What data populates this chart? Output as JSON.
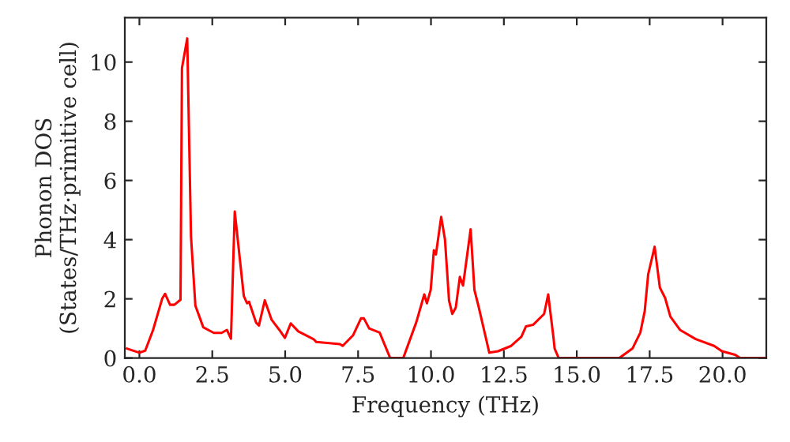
{
  "chart_data": {
    "type": "line",
    "xlabel": "Frequency (THz)",
    "ylabel": "Phonon DOS\n(States/THz·primitive cell)",
    "xlim": [
      -0.5,
      21.5
    ],
    "ylim": [
      0,
      11.5
    ],
    "xticks": [
      {
        "value": 0,
        "label": "0.0"
      },
      {
        "value": 2.5,
        "label": "2.5"
      },
      {
        "value": 5,
        "label": "5.0"
      },
      {
        "value": 7.5,
        "label": "7.5"
      },
      {
        "value": 10,
        "label": "10.0"
      },
      {
        "value": 12.5,
        "label": "12.5"
      },
      {
        "value": 15,
        "label": "15.0"
      },
      {
        "value": 17.5,
        "label": "17.5"
      },
      {
        "value": 20,
        "label": "20.0"
      }
    ],
    "yticks": [
      0,
      2,
      4,
      6,
      8,
      10
    ],
    "grid": false,
    "legend": false,
    "marker": "none",
    "line_style": "solid",
    "series": [
      {
        "color": "#ff0000",
        "x": [
          -0.43,
          0.0,
          0.2,
          0.47,
          0.78,
          0.88,
          1.05,
          1.2,
          1.41,
          1.46,
          1.64,
          1.77,
          1.92,
          2.19,
          2.55,
          2.82,
          3.0,
          3.14,
          3.27,
          3.58,
          3.69,
          3.76,
          4.0,
          4.1,
          4.3,
          4.53,
          4.8,
          4.99,
          5.19,
          5.45,
          5.98,
          6.07,
          6.88,
          6.97,
          7.33,
          7.6,
          7.7,
          7.88,
          8.24,
          8.6,
          9.05,
          9.5,
          9.77,
          9.86,
          9.99,
          10.1,
          10.17,
          10.35,
          10.48,
          10.62,
          10.73,
          10.85,
          10.99,
          11.1,
          11.36,
          11.49,
          11.63,
          12.0,
          12.3,
          12.75,
          13.1,
          13.26,
          13.5,
          13.88,
          14.02,
          14.2,
          14.24,
          14.38,
          16.46,
          16.91,
          17.18,
          17.33,
          17.45,
          17.67,
          17.85,
          18.03,
          18.21,
          18.54,
          19.08,
          19.71,
          19.98,
          20.43,
          20.6,
          21.5
        ],
        "values": [
          0.32,
          0.18,
          0.25,
          0.95,
          2.0,
          2.17,
          1.8,
          1.8,
          1.97,
          9.8,
          10.8,
          4.1,
          1.77,
          1.04,
          0.85,
          0.85,
          0.95,
          0.65,
          4.95,
          2.1,
          1.85,
          1.9,
          1.2,
          1.1,
          1.95,
          1.3,
          0.95,
          0.68,
          1.17,
          0.9,
          0.63,
          0.54,
          0.47,
          0.41,
          0.77,
          1.34,
          1.34,
          1.0,
          0.86,
          0,
          0,
          1.22,
          2.15,
          1.85,
          2.3,
          3.64,
          3.5,
          4.77,
          4.0,
          1.94,
          1.49,
          1.7,
          2.74,
          2.45,
          4.35,
          2.3,
          1.75,
          0.18,
          0.23,
          0.41,
          0.72,
          1.07,
          1.12,
          1.49,
          2.15,
          0.7,
          0.32,
          0,
          0,
          0.32,
          0.86,
          1.58,
          2.83,
          3.76,
          2.38,
          2.03,
          1.4,
          0.95,
          0.64,
          0.41,
          0.23,
          0.11,
          0,
          0
        ]
      }
    ]
  }
}
